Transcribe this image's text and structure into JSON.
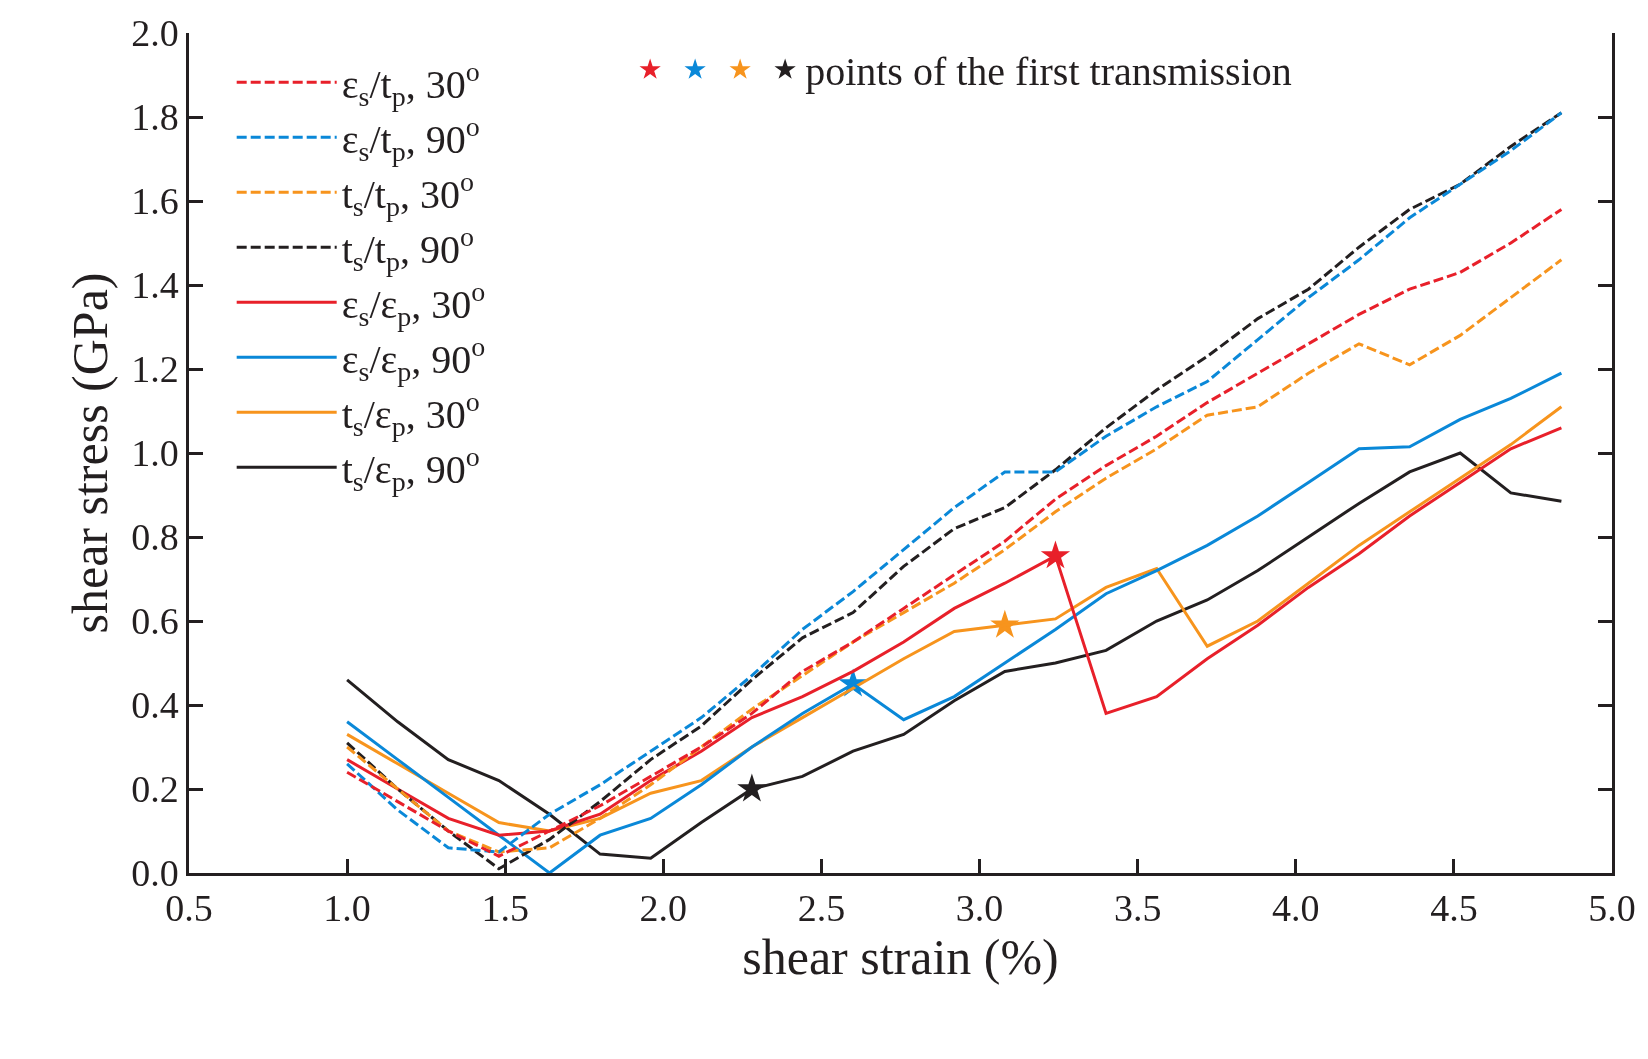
{
  "chart_data": {
    "type": "line",
    "xlabel": "shear strain (%)",
    "ylabel": "shear stress (GPa)",
    "x": [
      1.0,
      1.16,
      1.32,
      1.48,
      1.64,
      1.8,
      1.96,
      2.12,
      2.28,
      2.44,
      2.6,
      2.76,
      2.92,
      3.08,
      3.24,
      3.4,
      3.56,
      3.72,
      3.88,
      4.04,
      4.2,
      4.36,
      4.52,
      4.68,
      4.84
    ],
    "xlim": [
      0.5,
      5.0
    ],
    "ylim": [
      0.0,
      2.0
    ],
    "xticks": [
      {
        "value": 0.5,
        "label": "0.5"
      },
      {
        "value": 1.0,
        "label": "1.0"
      },
      {
        "value": 1.5,
        "label": "1.5"
      },
      {
        "value": 2.0,
        "label": "2.0"
      },
      {
        "value": 2.5,
        "label": "2.5"
      },
      {
        "value": 3.0,
        "label": "3.0"
      },
      {
        "value": 3.5,
        "label": "3.5"
      },
      {
        "value": 4.0,
        "label": "4.0"
      },
      {
        "value": 4.5,
        "label": "4.5"
      },
      {
        "value": 5.0,
        "label": "5.0"
      }
    ],
    "yticks": [
      {
        "value": 0.0,
        "label": "0.0"
      },
      0.2,
      0.4,
      0.6,
      0.8,
      {
        "value": 1.0,
        "label": "1.0"
      },
      1.2,
      1.4,
      1.6,
      1.8,
      {
        "value": 2.0,
        "label": "2.0"
      }
    ],
    "legend": "top left",
    "marker": "none",
    "series": [
      {
        "type": "scatter",
        "marker": "star",
        "color": "#e8202a",
        "x": [
          3.24
        ],
        "values": [
          0.755
        ]
      },
      {
        "type": "scatter",
        "marker": "star",
        "color": "#0a88d8",
        "x": [
          2.6
        ],
        "values": [
          0.45
        ]
      },
      {
        "type": "scatter",
        "marker": "star",
        "color": "#f7941d",
        "x": [
          3.08
        ],
        "values": [
          0.59
        ]
      },
      {
        "type": "scatter",
        "marker": "star",
        "color": "#231f20",
        "x": [
          2.28
        ],
        "values": [
          0.2
        ],
        "name": "points of the first transmission"
      },
      {
        "name": "ε$_{s}$/t$_{p}$, 30$^{o}$",
        "color": "#e8202a",
        "line_style": "dashed",
        "values": [
          0.24,
          0.17,
          0.1,
          0.04,
          0.1,
          0.16,
          0.23,
          0.3,
          0.38,
          0.48,
          0.55,
          0.63,
          0.71,
          0.79,
          0.89,
          0.97,
          1.04,
          1.12,
          1.19,
          1.26,
          1.33,
          1.39,
          1.43,
          1.5,
          1.58
        ]
      },
      {
        "name": "ε$_{s}$/t$_{p}$, 90$^{o}$",
        "color": "#0a88d8",
        "line_style": "dashed",
        "values": [
          0.26,
          0.15,
          0.06,
          0.05,
          0.14,
          0.21,
          0.29,
          0.37,
          0.47,
          0.58,
          0.67,
          0.77,
          0.87,
          0.955,
          0.955,
          1.04,
          1.11,
          1.17,
          1.27,
          1.37,
          1.46,
          1.56,
          1.64,
          1.72,
          1.81
        ]
      },
      {
        "name": "t$_{s}$/t$_{p}$, 30$^{o}$",
        "color": "#f7941d",
        "line_style": "dashed",
        "values": [
          0.3,
          0.2,
          0.1,
          0.05,
          0.06,
          0.13,
          0.21,
          0.3,
          0.39,
          0.47,
          0.55,
          0.62,
          0.69,
          0.77,
          0.86,
          0.94,
          1.01,
          1.09,
          1.11,
          1.19,
          1.26,
          1.21,
          1.28,
          1.37,
          1.46
        ]
      },
      {
        "name": "t$_{s}$/t$_{p}$, 90$^{o}$",
        "color": "#231f20",
        "line_style": "dashed",
        "values": [
          0.31,
          0.2,
          0.1,
          0.01,
          0.08,
          0.17,
          0.27,
          0.35,
          0.46,
          0.56,
          0.62,
          0.73,
          0.82,
          0.87,
          0.96,
          1.06,
          1.15,
          1.23,
          1.32,
          1.39,
          1.49,
          1.58,
          1.64,
          1.73,
          1.81
        ]
      },
      {
        "name": "ε$_{s}$/ε$_{p}$, 30$^{o}$",
        "color": "#e8202a",
        "line_style": "solid",
        "values": [
          0.27,
          0.2,
          0.13,
          0.09,
          0.1,
          0.14,
          0.22,
          0.29,
          0.37,
          0.42,
          0.48,
          0.55,
          0.63,
          0.69,
          0.755,
          0.38,
          0.42,
          0.51,
          0.59,
          0.68,
          0.76,
          0.85,
          0.93,
          1.01,
          1.06
        ]
      },
      {
        "name": "ε$_{s}$/ε$_{p}$, 90$^{o}$",
        "color": "#0a88d8",
        "line_style": "solid",
        "values": [
          0.36,
          0.27,
          0.18,
          0.09,
          0.0,
          0.09,
          0.13,
          0.21,
          0.3,
          0.38,
          0.45,
          0.365,
          0.42,
          0.5,
          0.58,
          0.665,
          0.72,
          0.78,
          0.85,
          0.93,
          1.01,
          1.015,
          1.08,
          1.13,
          1.19
        ]
      },
      {
        "name": "t$_{s}$/ε$_{p}$, 30$^{o}$",
        "color": "#f7941d",
        "line_style": "solid",
        "values": [
          0.33,
          0.26,
          0.19,
          0.12,
          0.1,
          0.13,
          0.19,
          0.22,
          0.3,
          0.37,
          0.44,
          0.51,
          0.575,
          0.59,
          0.605,
          0.68,
          0.725,
          0.54,
          0.6,
          0.69,
          0.78,
          0.86,
          0.94,
          1.02,
          1.11
        ]
      },
      {
        "name": "t$_{s}$/ε$_{p}$, 90$^{o}$",
        "color": "#231f20",
        "line_style": "solid",
        "values": [
          0.46,
          0.36,
          0.27,
          0.22,
          0.14,
          0.045,
          0.035,
          0.12,
          0.2,
          0.23,
          0.29,
          0.33,
          0.41,
          0.48,
          0.5,
          0.53,
          0.6,
          0.65,
          0.72,
          0.8,
          0.88,
          0.955,
          1.0,
          0.905,
          0.885
        ]
      }
    ]
  }
}
